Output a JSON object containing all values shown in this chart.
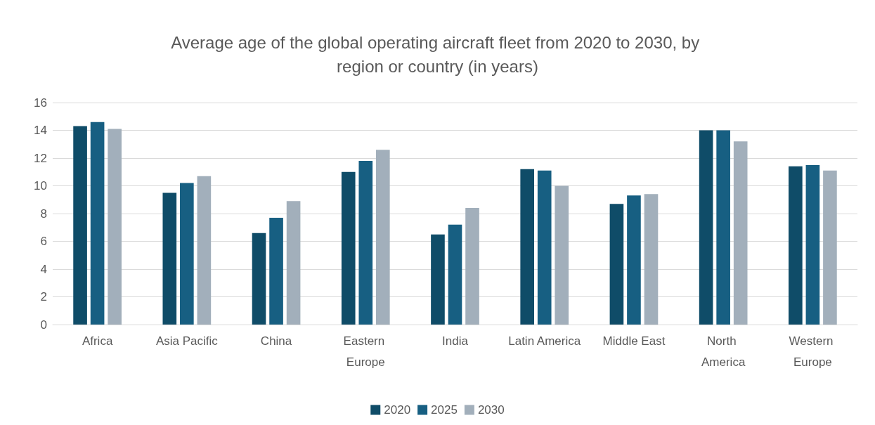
{
  "chart_data": {
    "type": "bar",
    "title": "Average age of the global operating aircraft fleet from 2020 to 2030, by region or country (in years)",
    "categories": [
      "Africa",
      "Asia Pacific",
      "China",
      "Eastern Europe",
      "India",
      "Latin America",
      "Middle East",
      "North America",
      "Western Europe"
    ],
    "series": [
      {
        "name": "2020",
        "color": "#0f4c68",
        "values": [
          14.3,
          9.5,
          6.6,
          11.0,
          6.5,
          11.2,
          8.7,
          14.0,
          11.4
        ]
      },
      {
        "name": "2025",
        "color": "#175f82",
        "values": [
          14.6,
          10.2,
          7.7,
          11.8,
          7.2,
          11.1,
          9.3,
          14.0,
          11.5
        ]
      },
      {
        "name": "2030",
        "color": "#a2afbb",
        "values": [
          14.1,
          10.7,
          8.9,
          12.6,
          8.4,
          10.0,
          9.4,
          13.2,
          11.1
        ]
      }
    ],
    "ylim": [
      0,
      16
    ],
    "yticks": [
      0,
      2,
      4,
      6,
      8,
      10,
      12,
      14,
      16
    ],
    "grid": "y",
    "legend": "bottom"
  }
}
